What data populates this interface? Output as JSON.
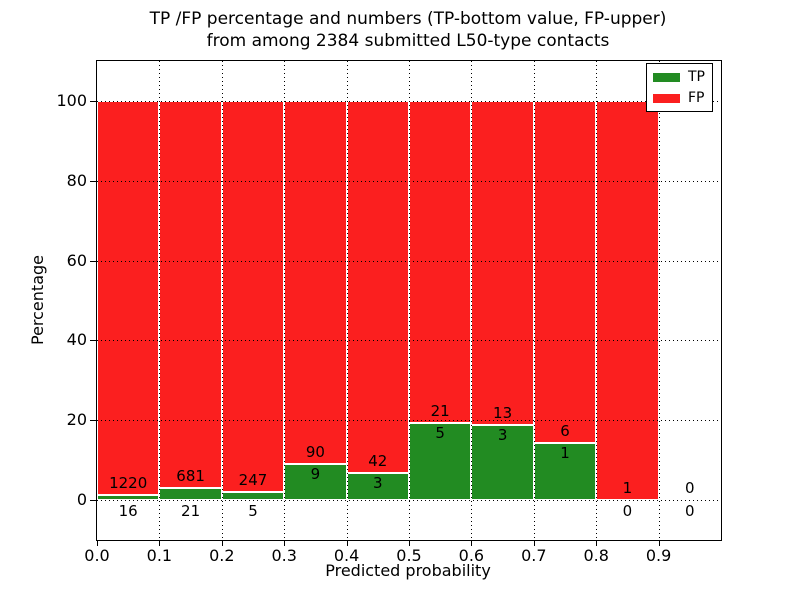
{
  "chart_data": {
    "type": "bar",
    "stacked": true,
    "title": "TP /FP percentage and numbers (TP-bottom value, FP-upper) from among 2384 submitted L50-type contacts",
    "title_lines": [
      "TP /FP percentage and numbers (TP-bottom value, FP-upper)",
      "from among 2384 submitted L50-type contacts"
    ],
    "total_submitted_contacts": 2384,
    "xlabel": "Predicted probability",
    "ylabel": "Percentage",
    "xlim": [
      0.0,
      1.0
    ],
    "ylim": [
      -10,
      110
    ],
    "bin_width": 0.1,
    "x_bins": [
      0.0,
      0.1,
      0.2,
      0.3,
      0.4,
      0.5,
      0.6,
      0.7,
      0.8,
      0.9
    ],
    "xticks": [
      0.0,
      0.1,
      0.2,
      0.3,
      0.4,
      0.5,
      0.6,
      0.7,
      0.8,
      0.9
    ],
    "xtick_labels": [
      "0.0",
      "0.1",
      "0.2",
      "0.3",
      "0.4",
      "0.5",
      "0.6",
      "0.7",
      "0.8",
      "0.9"
    ],
    "yticks": [
      0,
      20,
      40,
      60,
      80,
      100
    ],
    "ytick_labels": [
      "0",
      "20",
      "40",
      "60",
      "80",
      "100"
    ],
    "grid": true,
    "grid_style": "dotted",
    "legend_position": "upper right",
    "series": [
      {
        "name": "TP",
        "color": "#228b22",
        "counts": [
          16,
          21,
          5,
          9,
          3,
          5,
          3,
          1,
          0,
          0
        ],
        "percent": [
          1.29,
          2.99,
          1.98,
          9.09,
          6.67,
          19.23,
          18.75,
          14.29,
          0,
          0
        ]
      },
      {
        "name": "FP",
        "color": "#fb1f1f",
        "counts": [
          1220,
          681,
          247,
          90,
          42,
          21,
          13,
          6,
          1,
          0
        ],
        "percent": [
          98.71,
          97.01,
          98.02,
          90.91,
          93.33,
          80.77,
          81.25,
          85.71,
          100,
          0
        ]
      }
    ]
  }
}
